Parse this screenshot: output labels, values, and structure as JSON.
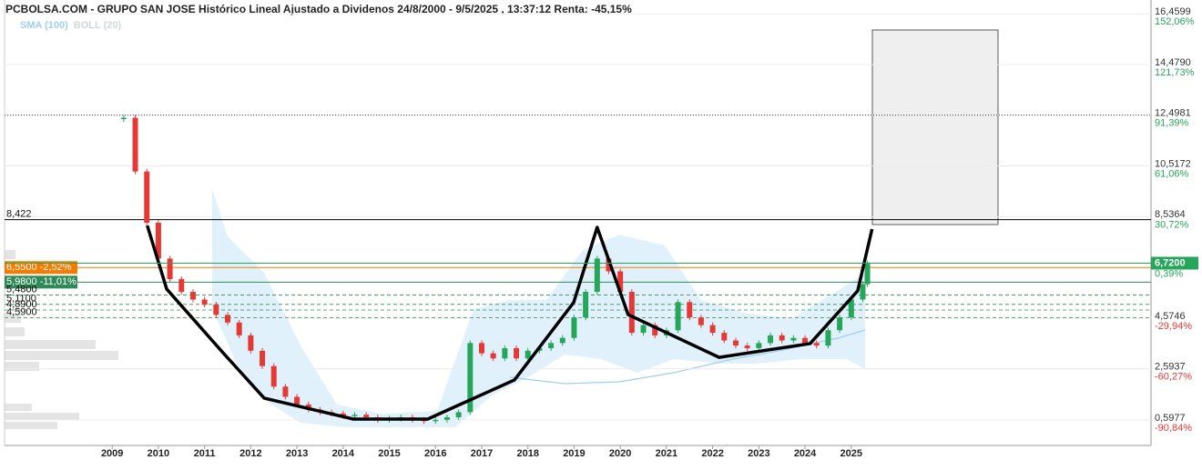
{
  "chart_data": {
    "type": "candlestick",
    "title": "PCBOLSA.COM - GRUPO SAN JOSE Histórico Lineal Ajustado a Dividenos 24/8/2000 - 9/5/2025 , 13:37:12 Renta: -45,15%",
    "legend": [
      {
        "name": "SMA (100)",
        "color": "#9ecff0"
      },
      {
        "name": "BOLL (20)",
        "color": "#cfd8dc"
      }
    ],
    "up_color": "#26a65b",
    "down_color": "#e53935",
    "x": [
      2009.25,
      2009.5,
      2009.75,
      2010.0,
      2010.25,
      2010.5,
      2010.75,
      2011.0,
      2011.25,
      2011.5,
      2011.75,
      2012.0,
      2012.25,
      2012.5,
      2012.75,
      2013.0,
      2013.25,
      2013.5,
      2013.75,
      2014.0,
      2014.25,
      2014.5,
      2014.75,
      2015.0,
      2015.25,
      2015.5,
      2015.75,
      2016.0,
      2016.25,
      2016.5,
      2016.75,
      2017.0,
      2017.25,
      2017.5,
      2017.75,
      2018.0,
      2018.25,
      2018.5,
      2018.75,
      2019.0,
      2019.25,
      2019.5,
      2019.75,
      2020.0,
      2020.25,
      2020.5,
      2020.75,
      2021.0,
      2021.25,
      2021.5,
      2021.75,
      2022.0,
      2022.25,
      2022.5,
      2022.75,
      2023.0,
      2023.25,
      2023.5,
      2023.75,
      2024.0,
      2024.25,
      2024.5,
      2024.75,
      2025.0,
      2025.25,
      2025.35
    ],
    "values": [
      12.4,
      10.3,
      8.3,
      6.9,
      6.1,
      5.6,
      5.3,
      5.1,
      4.7,
      4.4,
      3.9,
      3.3,
      2.7,
      1.9,
      1.5,
      1.2,
      1.0,
      0.9,
      0.85,
      0.75,
      0.8,
      0.7,
      0.6,
      0.65,
      0.7,
      0.6,
      0.55,
      0.6,
      0.7,
      0.9,
      3.6,
      3.2,
      3.0,
      3.4,
      3.0,
      3.3,
      3.4,
      3.6,
      3.8,
      4.6,
      5.6,
      6.9,
      6.4,
      5.6,
      4.0,
      4.3,
      3.9,
      4.1,
      5.2,
      4.6,
      4.3,
      4.0,
      3.7,
      3.5,
      3.4,
      3.6,
      3.9,
      3.7,
      3.8,
      3.6,
      3.5,
      4.1,
      4.6,
      5.3,
      5.9,
      6.72
    ],
    "annotation_line": {
      "color": "#000000",
      "x": [
        2009.76,
        2010.18,
        2011.4,
        2012.29,
        2014.22,
        2015.83,
        2017.71,
        2018.99,
        2019.5,
        2020.17,
        2022.14,
        2024.11,
        2025.14,
        2025.45
      ],
      "values": [
        8.19,
        5.71,
        3.22,
        1.45,
        0.63,
        0.63,
        2.16,
        5.18,
        8.12,
        4.71,
        3.04,
        3.58,
        5.64,
        8.05
      ]
    },
    "xlim": [
      2006.67,
      2031.49
    ],
    "xticks": [
      2009,
      2010,
      2011,
      2012,
      2013,
      2014,
      2015,
      2016,
      2017,
      2018,
      2019,
      2020,
      2021,
      2022,
      2023,
      2024,
      2025
    ],
    "ylim": [
      -0.4,
      17.0
    ],
    "yticks": [
      {
        "value": 16.4599,
        "label": "16,4599"
      },
      {
        "value": 14.479,
        "label": "14,4790"
      },
      {
        "value": 12.4981,
        "label": "12,4981"
      },
      {
        "value": 10.5172,
        "label": "10,5172"
      },
      {
        "value": 8.5364,
        "label": "8,5364"
      },
      {
        "value": 4.5746,
        "label": "4,5746"
      },
      {
        "value": 2.5937,
        "label": "2,5937"
      },
      {
        "value": 0.5977,
        "label": "0,5977"
      }
    ],
    "y2lim": [
      -106.13,
      160.34
    ],
    "y2ticks": [
      {
        "value": 152.06,
        "label": "152,06%"
      },
      {
        "value": 121.73,
        "label": "121,73%"
      },
      {
        "value": 91.39,
        "label": "91,39%"
      },
      {
        "value": 61.06,
        "label": "61,06%"
      },
      {
        "value": 30.72,
        "label": "30,72%"
      },
      {
        "value": -29.94,
        "label": "-29,94%"
      },
      {
        "value": -60.27,
        "label": "-60,27%"
      },
      {
        "value": -90.84,
        "label": "-90,84%"
      }
    ],
    "last_price": {
      "value": 6.72,
      "label": "6,7200",
      "change_label": "0,39%",
      "color": "#26a65b"
    },
    "levels": [
      {
        "value": 12.4981,
        "color": "#000000",
        "style": "dotted"
      },
      {
        "value": 8.422,
        "label": "8,422",
        "color": "#000000",
        "style": "solid"
      },
      {
        "value": 6.55,
        "label": "6,5500 -2,52%",
        "color": "#f57c00",
        "style": "solid",
        "boxed": true
      },
      {
        "value": 5.98,
        "label": "5,9800 -11,01%",
        "color": "#2e8b57",
        "style": "solid",
        "boxed": true
      },
      {
        "value": 5.48,
        "label": "5,4800",
        "color": "#2e8b57",
        "style": "dashed"
      },
      {
        "value": 5.11,
        "label": "5,1100",
        "color": "#2e8b57",
        "style": "dashed"
      },
      {
        "value": 4.89,
        "label": "4,8900",
        "color": "#2e8b57",
        "style": "dashed"
      },
      {
        "value": 4.59,
        "label": "4,5900",
        "color": "#2e8b57",
        "style": "dashed"
      }
    ]
  }
}
